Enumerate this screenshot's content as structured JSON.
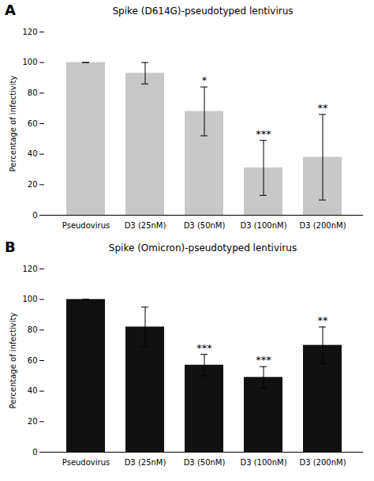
{
  "chart_data": [
    {
      "type": "bar",
      "panel_label": "A",
      "title": "Spike (D614G)-pseudotyped lentivirus",
      "categories": [
        "Pseudovirus",
        "D3 (25nM)",
        "D3 (50nM)",
        "D3 (100nM)",
        "D3 (200nM)"
      ],
      "values": [
        100,
        93,
        68,
        31,
        38
      ],
      "errors": [
        0,
        7,
        16,
        18,
        28
      ],
      "annotations": [
        null,
        null,
        "*",
        "***",
        "**"
      ],
      "color": "#c8c8c8",
      "ylabel": "Percentage of infectivity",
      "ylim": [
        0,
        120
      ],
      "yticks": [
        0,
        20,
        40,
        60,
        80,
        100,
        120
      ],
      "grid": false
    },
    {
      "type": "bar",
      "panel_label": "B",
      "title": "Spike (Omicron)-pseudotyped lentivirus",
      "categories": [
        "Pseudovirus",
        "D3 (25nM)",
        "D3 (50nM)",
        "D3 (100nM)",
        "D3 (200nM)"
      ],
      "values": [
        100,
        82,
        57,
        49,
        70
      ],
      "errors": [
        0,
        13,
        7,
        7,
        12
      ],
      "annotations": [
        null,
        null,
        "***",
        "***",
        "**"
      ],
      "color": "#111111",
      "ylabel": "Percentage of infectivity",
      "ylim": [
        0,
        120
      ],
      "yticks": [
        0,
        20,
        40,
        60,
        80,
        100,
        120
      ],
      "grid": false
    }
  ]
}
